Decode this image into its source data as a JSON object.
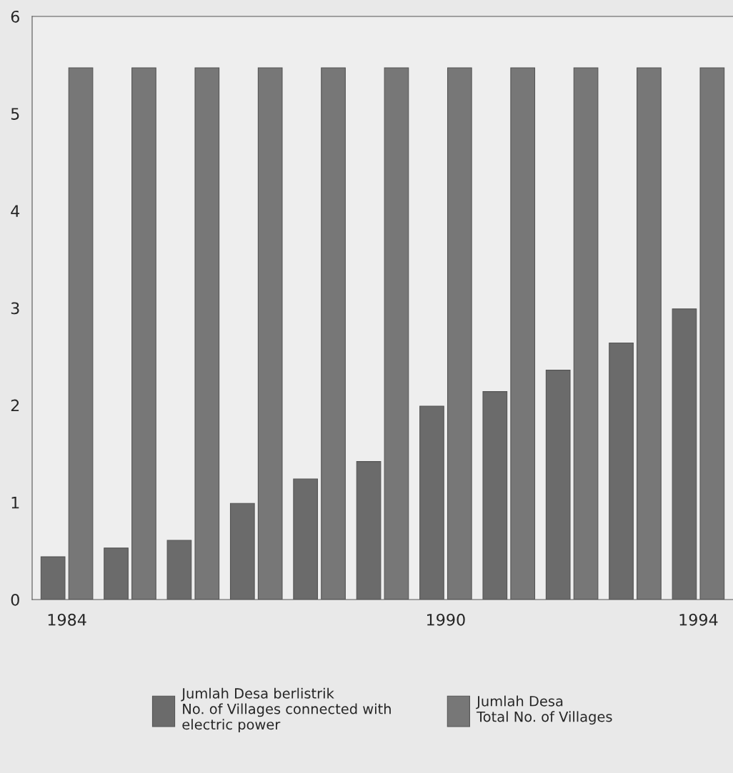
{
  "chart_data": {
    "type": "bar",
    "categories": [
      "1984",
      null,
      null,
      null,
      null,
      null,
      "1990",
      null,
      null,
      null,
      "1994"
    ],
    "series": [
      {
        "name": "Jumlah Desa berlistrik\nNo. of Villages connected with\nelectric power",
        "color": "#6b6b6b",
        "values": [
          0.44,
          0.53,
          0.61,
          0.99,
          1.24,
          1.42,
          1.99,
          2.14,
          2.36,
          2.64,
          2.99
        ]
      },
      {
        "name": "Jumlah Desa\nTotal No. of Villages",
        "color": "#777777",
        "values": [
          5.47,
          5.47,
          5.47,
          5.47,
          5.47,
          5.47,
          5.47,
          5.47,
          5.47,
          5.47,
          5.47
        ]
      }
    ],
    "ylim": [
      0,
      6
    ],
    "yticks": [
      0,
      1,
      2,
      3,
      4,
      5,
      6
    ],
    "grid": false,
    "legend": "bottom"
  }
}
